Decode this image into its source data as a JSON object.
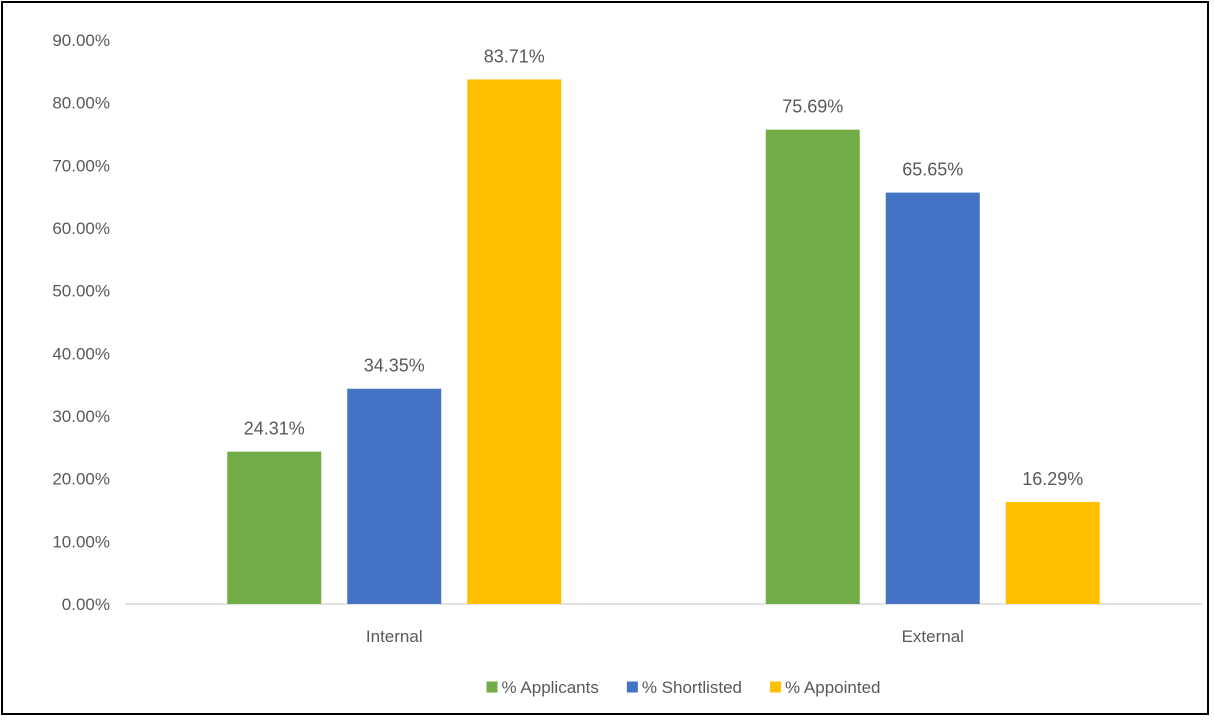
{
  "chart_data": {
    "type": "bar",
    "title": "",
    "xlabel": "",
    "ylabel": "",
    "categories": [
      "Internal",
      "External"
    ],
    "series": [
      {
        "name": "% Applicants",
        "values": [
          24.31,
          75.69
        ],
        "color": "#70AD47"
      },
      {
        "name": "% Shortlisted",
        "values": [
          34.35,
          65.65
        ],
        "color": "#4472C4"
      },
      {
        "name": "% Appointed",
        "values": [
          83.71,
          16.29
        ],
        "color": "#FFC000"
      }
    ],
    "data_labels": [
      [
        "24.31%",
        "75.69%"
      ],
      [
        "34.35%",
        "65.65%"
      ],
      [
        "83.71%",
        "16.29%"
      ]
    ],
    "ylim": [
      0,
      90
    ],
    "yticks": [
      0,
      10,
      20,
      30,
      40,
      50,
      60,
      70,
      80,
      90
    ],
    "ytick_labels": [
      "0.00%",
      "10.00%",
      "20.00%",
      "30.00%",
      "40.00%",
      "50.00%",
      "60.00%",
      "70.00%",
      "80.00%",
      "90.00%"
    ],
    "grid": false,
    "legend_position": "bottom",
    "axis_color": "#D9D9D9",
    "text_color": "#595959"
  }
}
